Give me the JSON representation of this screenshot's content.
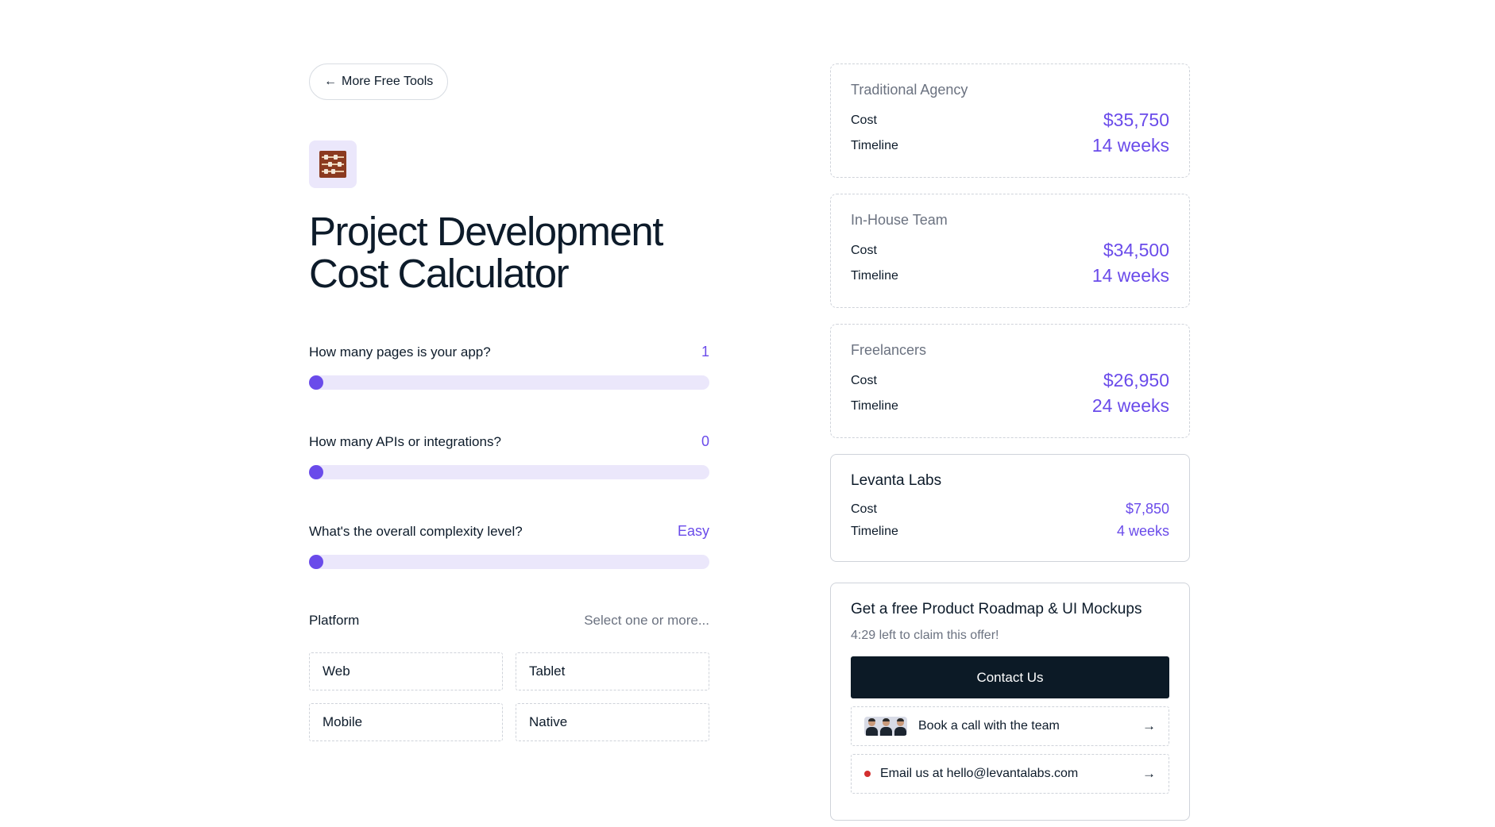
{
  "nav": {
    "back_label": "More Free Tools",
    "back_icon": "arrow-left-icon"
  },
  "header": {
    "icon": "abacus-icon",
    "title_line1": "Project Development",
    "title_line2": "Cost Calculator"
  },
  "questions": [
    {
      "label": "How many pages is your app?",
      "value": "1",
      "slider_fraction": 0
    },
    {
      "label": "How many APIs or integrations?",
      "value": "0",
      "slider_fraction": 0
    },
    {
      "label": "What's the overall complexity level?",
      "value": "Easy",
      "slider_fraction": 0
    }
  ],
  "platform": {
    "label": "Platform",
    "hint": "Select one or more...",
    "options": [
      "Web",
      "Tablet",
      "Mobile",
      "Native"
    ]
  },
  "estimates": [
    {
      "name": "Traditional Agency",
      "cost_label": "Cost",
      "cost": "$35,750",
      "timeline_label": "Timeline",
      "timeline": "14 weeks"
    },
    {
      "name": "In-House Team",
      "cost_label": "Cost",
      "cost": "$34,500",
      "timeline_label": "Timeline",
      "timeline": "14 weeks"
    },
    {
      "name": "Freelancers",
      "cost_label": "Cost",
      "cost": "$26,950",
      "timeline_label": "Timeline",
      "timeline": "24 weeks"
    },
    {
      "name": "Levanta Labs",
      "cost_label": "Cost",
      "cost": "$7,850",
      "timeline_label": "Timeline",
      "timeline": "4 weeks"
    }
  ],
  "offer": {
    "title": "Get a free Product Roadmap & UI Mockups",
    "subtitle": "4:29 left to claim this offer!",
    "contact_label": "Contact Us",
    "book_call_label": "Book a call with the team",
    "email_label": "Email us at hello@levantalabs.com"
  },
  "colors": {
    "accent": "#6a4bea",
    "track": "#ebe7fb",
    "dark_button": "#0c1a26",
    "status_dot": "#d32f2f"
  }
}
